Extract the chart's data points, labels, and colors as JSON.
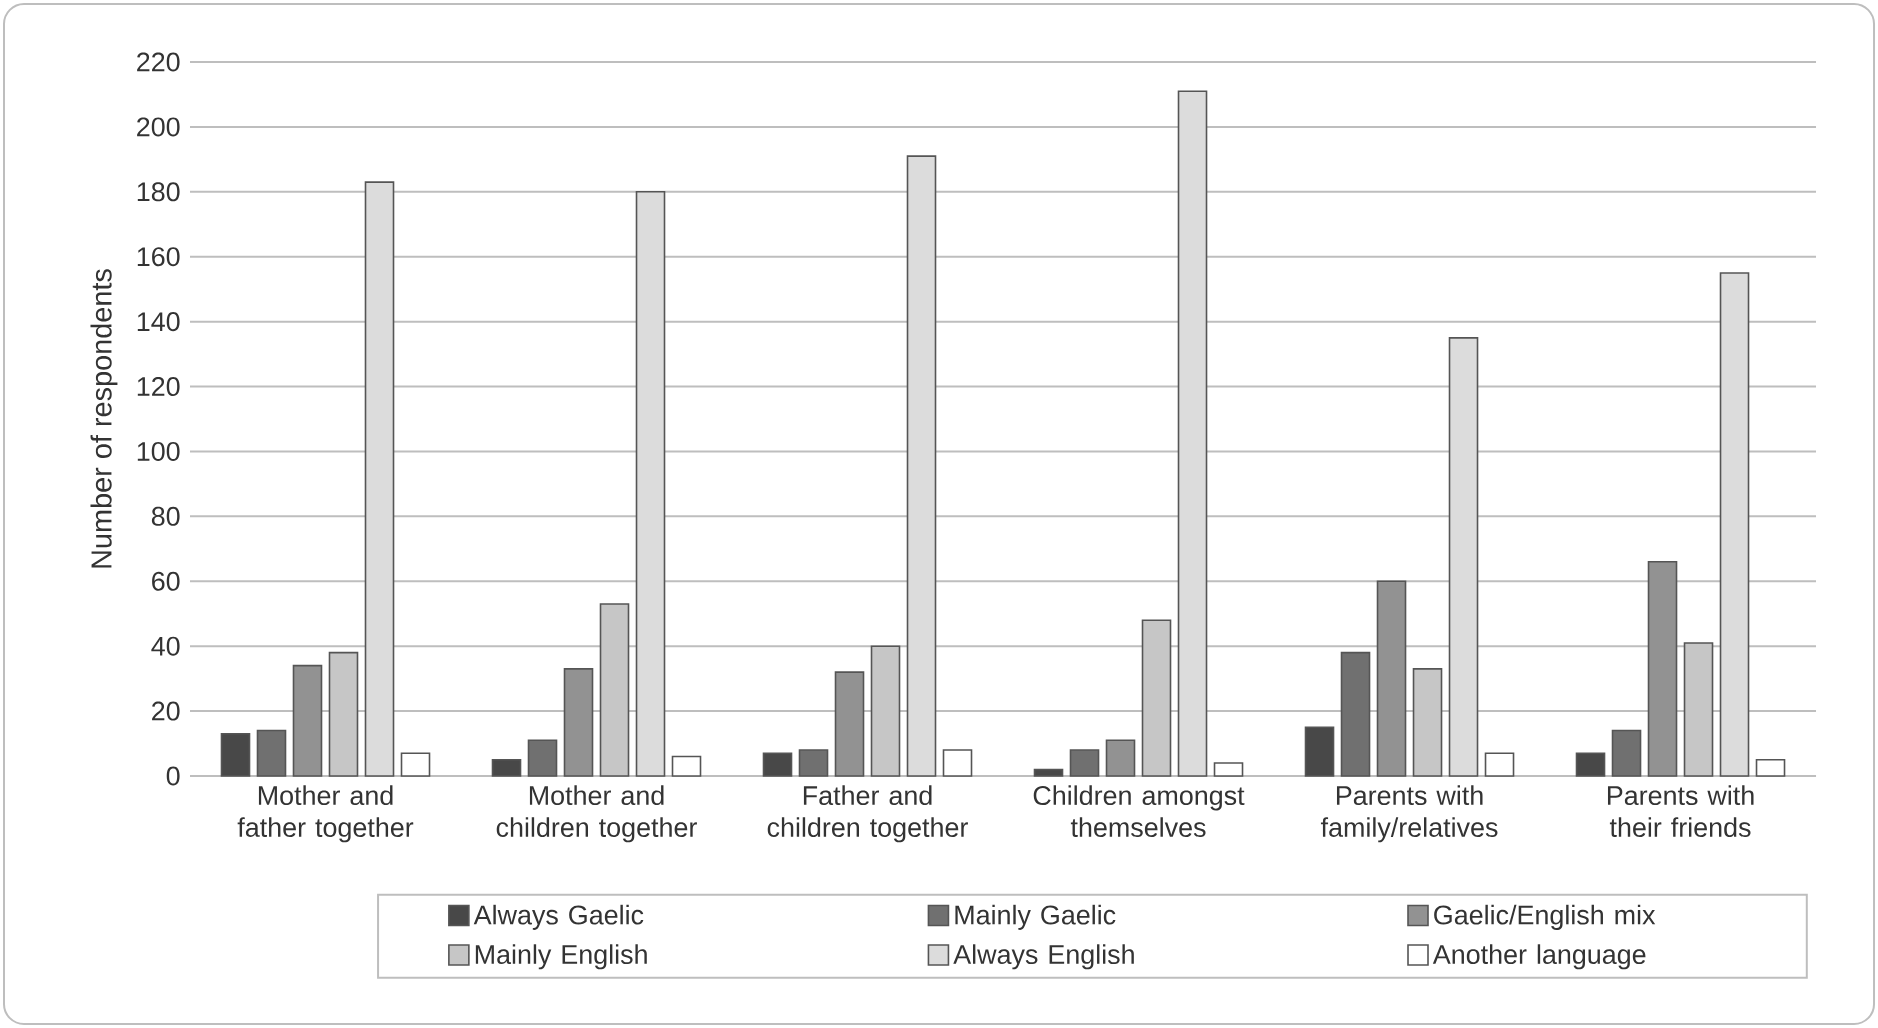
{
  "chart_data": {
    "type": "bar",
    "ylabel": "Number of respondents",
    "categories": [
      "Mother and father together",
      "Mother and children together",
      "Father and children together",
      "Children amongst themselves",
      "Parents with family/relatives",
      "Parents with their friends"
    ],
    "series": [
      {
        "name": "Always Gaelic",
        "color": "#484848",
        "values": [
          13,
          5,
          7,
          2,
          15,
          7
        ]
      },
      {
        "name": "Mainly Gaelic",
        "color": "#707070",
        "values": [
          14,
          11,
          8,
          8,
          38,
          14
        ]
      },
      {
        "name": "Gaelic/English mix",
        "color": "#929292",
        "values": [
          34,
          33,
          32,
          11,
          60,
          66
        ]
      },
      {
        "name": "Mainly English",
        "color": "#c6c6c6",
        "values": [
          38,
          53,
          40,
          48,
          33,
          41
        ]
      },
      {
        "name": "Always English",
        "color": "#dcdcdc",
        "values": [
          183,
          180,
          191,
          211,
          135,
          155
        ]
      },
      {
        "name": "Another language",
        "color": "#ffffff",
        "values": [
          7,
          6,
          8,
          4,
          7,
          5
        ]
      }
    ],
    "ylim": [
      0,
      220
    ],
    "yticks": [
      0,
      20,
      40,
      60,
      80,
      100,
      120,
      140,
      160,
      180,
      200,
      220
    ],
    "grid": "y",
    "legend": "bottom"
  }
}
